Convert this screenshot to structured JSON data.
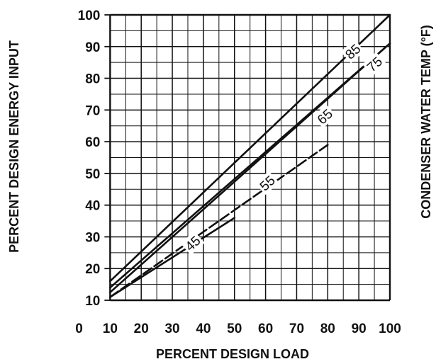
{
  "chart_data": {
    "type": "line",
    "title": "",
    "xlabel": "PERCENT DESIGN LOAD",
    "ylabel": "PERCENT DESIGN ENERGY INPUT",
    "legend_title": "CONDENSER WATER TEMP (°F)",
    "xlim": [
      0,
      100
    ],
    "ylim": [
      10,
      100
    ],
    "x_ticks": [
      0,
      10,
      20,
      30,
      40,
      50,
      60,
      70,
      80,
      90,
      100
    ],
    "y_ticks": [
      10,
      20,
      30,
      40,
      50,
      60,
      70,
      80,
      90,
      100
    ],
    "x_tick_labels": [
      "0",
      "10",
      "20",
      "30",
      "40",
      "50",
      "60",
      "70",
      "80",
      "90",
      "100"
    ],
    "y_tick_labels": [
      "10",
      "20",
      "30",
      "40",
      "50",
      "60",
      "70",
      "80",
      "90",
      "100"
    ],
    "grid": true,
    "grid_step": 5,
    "series": [
      {
        "name": "85",
        "x": [
          10,
          100
        ],
        "y": [
          16,
          100
        ],
        "style": "solid",
        "label_at": [
          88,
          88.5
        ],
        "label_rotation": -42
      },
      {
        "name": "75",
        "x": [
          10,
          100
        ],
        "y": [
          14,
          91
        ],
        "style": "solid",
        "label_at": [
          95,
          84.5
        ],
        "label_rotation": -42
      },
      {
        "name": "65",
        "x": [
          10,
          100
        ],
        "y": [
          12.5,
          91
        ],
        "style": "solid",
        "label_at": [
          79,
          68
        ],
        "label_rotation": -42
      },
      {
        "name": "55",
        "x": [
          10,
          80
        ],
        "y": [
          11,
          59
        ],
        "style": "dashed",
        "label_at": [
          60.5,
          47
        ],
        "label_rotation": -42
      },
      {
        "name": "45",
        "x": [
          10,
          50
        ],
        "y": [
          11,
          36
        ],
        "style": "solid",
        "label_at": [
          36.5,
          28
        ],
        "label_rotation": -42
      }
    ],
    "colors": {
      "line": "#111111",
      "grid": "#111111",
      "background": "#ffffff"
    }
  }
}
